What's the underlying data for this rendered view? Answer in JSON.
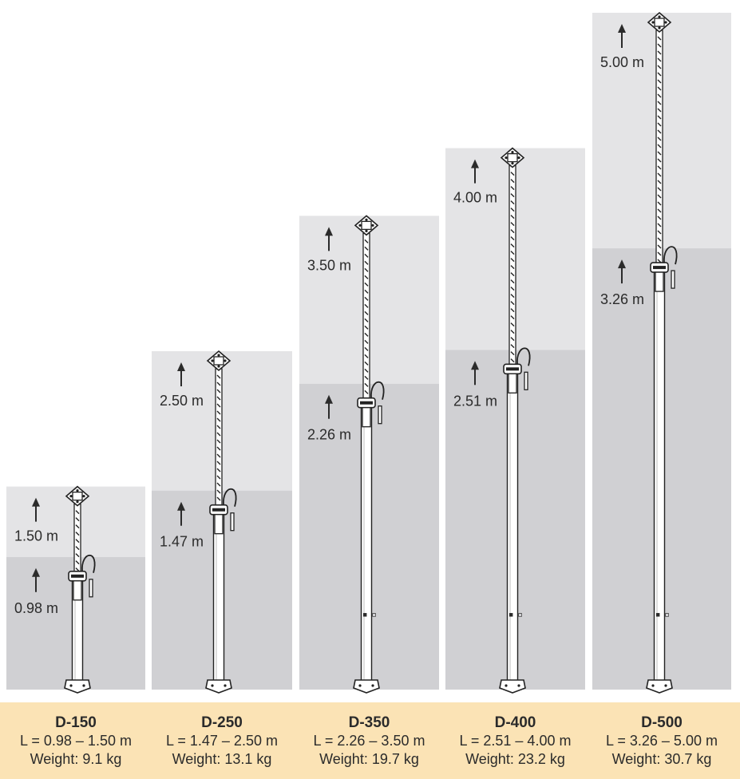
{
  "colors": {
    "upper_band": "#e4e4e6",
    "lower_band": "#d0d0d3",
    "info_band": "#fbe3b5",
    "text": "#2b2b2b",
    "prop_outline": "#222222"
  },
  "props": [
    {
      "name": "D-150",
      "length_range": "L = 0.98 – 1.50 m",
      "weight": "Weight: 9.1 kg",
      "max_label": "1.50 m",
      "min_label": "0.98 m",
      "max_m": 1.5,
      "min_m": 0.98
    },
    {
      "name": "D-250",
      "length_range": "L = 1.47 – 2.50 m",
      "weight": "Weight: 13.1 kg",
      "max_label": "2.50 m",
      "min_label": "1.47 m",
      "max_m": 2.5,
      "min_m": 1.47
    },
    {
      "name": "D-350",
      "length_range": "L = 2.26 – 3.50 m",
      "weight": "Weight: 19.7 kg",
      "max_label": "3.50 m",
      "min_label": "2.26 m",
      "max_m": 3.5,
      "min_m": 2.26
    },
    {
      "name": "D-400",
      "length_range": "L = 2.51 – 4.00 m",
      "weight": "Weight: 23.2 kg",
      "max_label": "4.00 m",
      "min_label": "2.51 m",
      "max_m": 4.0,
      "min_m": 2.51
    },
    {
      "name": "D-500",
      "length_range": "L = 3.26 – 5.00 m",
      "weight": "Weight: 30.7 kg",
      "max_label": "5.00 m",
      "min_label": "3.26 m",
      "max_m": 5.0,
      "min_m": 3.26
    }
  ]
}
